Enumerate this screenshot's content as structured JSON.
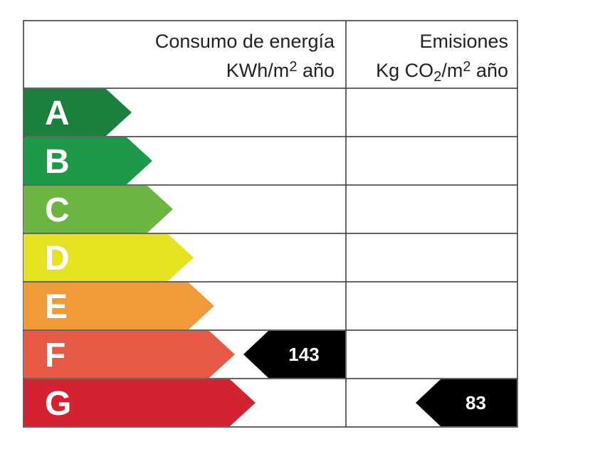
{
  "header": {
    "energy_title": "Consumo de energía",
    "energy_unit_pre": "KWh/m",
    "energy_unit_sup": "2",
    "energy_unit_post": " año",
    "emissions_title": "Emisiones",
    "emissions_unit_pre": "Kg CO",
    "emissions_unit_sub": "2",
    "emissions_unit_mid": "/m",
    "emissions_unit_sup": "2",
    "emissions_unit_post": " año"
  },
  "chart_data": {
    "type": "table",
    "classes": [
      "A",
      "B",
      "C",
      "D",
      "E",
      "F",
      "G"
    ],
    "colors": [
      "#1b7f3e",
      "#1d9a48",
      "#6cb543",
      "#e5e21f",
      "#f19a3a",
      "#e65a45",
      "#d32230"
    ],
    "energy": {
      "value": "143",
      "class": "F"
    },
    "emissions": {
      "value": "83",
      "class": "G"
    },
    "indicator_color": "#000000"
  }
}
